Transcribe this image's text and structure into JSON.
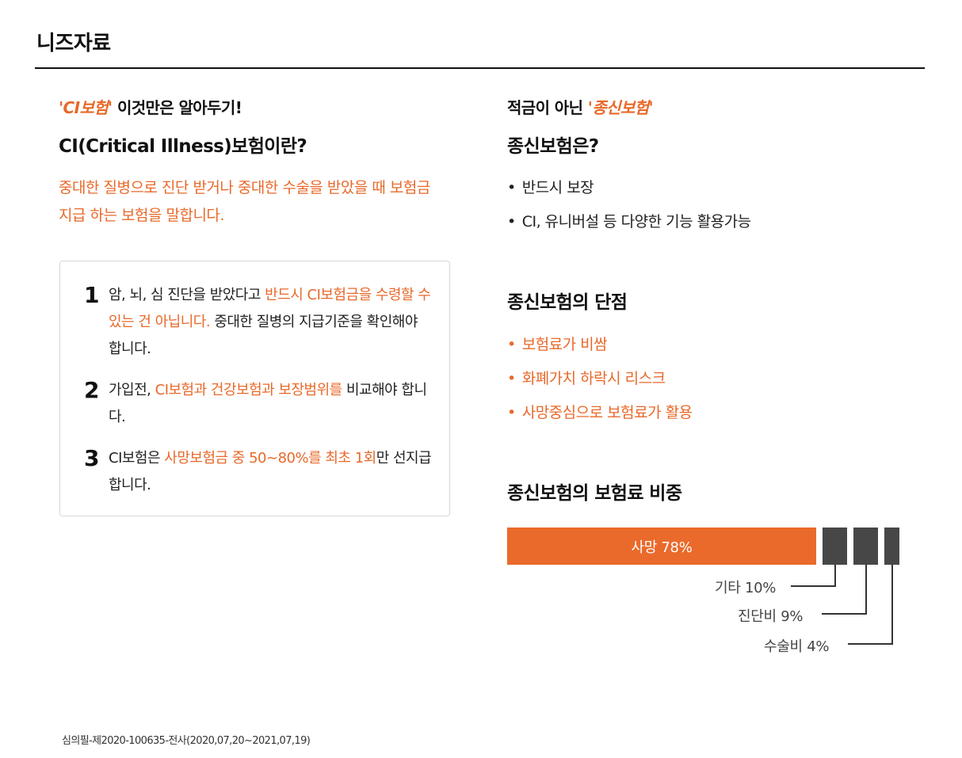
{
  "page": {
    "title": "니즈자료"
  },
  "left": {
    "tagline_quote": "'CI보험'",
    "tagline_rest": " 이것만은 알아두기!",
    "heading": "CI(Critical Illness)보험이란?",
    "description": "중대한 질병으로 진단 받거나 중대한 수술을 받았을 때 보험금 지급 하는 보험을 말합니다.",
    "items": [
      {
        "num": "1",
        "text_a": "암, 뇌, 심 진단을 받았다고 ",
        "text_orange": "반드시 CI보험금을 수령할 수 있는 건 아닙니다.",
        "text_b": " 중대한 질병의 지급기준을 확인해야 합니다."
      },
      {
        "num": "2",
        "text_a": "가입전, ",
        "text_orange": "CI보험과 건강보험과 보장범위를",
        "text_b": " 비교해야 합니다."
      },
      {
        "num": "3",
        "text_a": "CI보험은 ",
        "text_orange": "사망보험금 중 50~80%를 최초 1회",
        "text_b": "만 선지급합니다."
      }
    ]
  },
  "right": {
    "tagline_plain": "적금이 아닌 ",
    "tagline_quote": "'종신보험'",
    "heading_1": "종신보험은?",
    "bullets_1": [
      "반드시 보장",
      "CI, 유니버설 등 다양한 기능 활용가능"
    ],
    "heading_2": "종신보험의 단점",
    "bullets_2": [
      "보험료가 비쌈",
      "화폐가치 하락시 리스크",
      "사망중심으로 보험료가 활용"
    ],
    "heading_3": "종신보험의 보험료 비중"
  },
  "chart_data": {
    "type": "bar",
    "title": "종신보험의 보험료 비중",
    "categories": [
      "사망",
      "기타",
      "진단비",
      "수술비"
    ],
    "values": [
      78,
      10,
      9,
      4
    ],
    "labels": [
      "사망 78%",
      "기타 10%",
      "진단비 9%",
      "수술비 4%"
    ],
    "colors": {
      "main": "#ea6a2b",
      "other": "#474747"
    }
  },
  "footer": {
    "text": "심의필-제2020-100635-전사(2020,07,20~2021,07,19)"
  }
}
